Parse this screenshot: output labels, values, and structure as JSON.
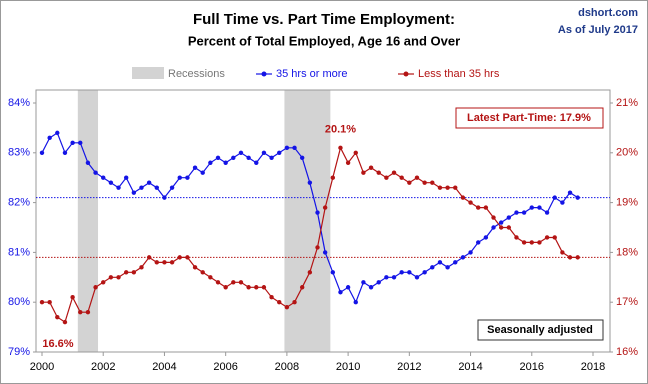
{
  "chart_data": {
    "type": "line",
    "title": "Full Time vs. Part Time Employment:",
    "subtitle": "Percent of Total Employed, Age 16 and Over",
    "source": "dshort.com",
    "date_note": "As of July 2017",
    "latest_label": "Latest Part-Time: 17.9%",
    "adjustment_note": "Seasonally adjusted",
    "annotations": [
      "20.1%",
      "16.6%"
    ],
    "recession_name": "Recessions",
    "recession_color": "#d3d3d3",
    "recessions": [
      [
        2001.17,
        2001.83
      ],
      [
        2007.92,
        2009.42
      ]
    ],
    "x": [
      2000,
      2000.25,
      2000.5,
      2000.75,
      2001,
      2001.25,
      2001.5,
      2001.75,
      2002,
      2002.25,
      2002.5,
      2002.75,
      2003,
      2003.25,
      2003.5,
      2003.75,
      2004,
      2004.25,
      2004.5,
      2004.75,
      2005,
      2005.25,
      2005.5,
      2005.75,
      2006,
      2006.25,
      2006.5,
      2006.75,
      2007,
      2007.25,
      2007.5,
      2007.75,
      2008,
      2008.25,
      2008.5,
      2008.75,
      2009,
      2009.25,
      2009.5,
      2009.75,
      2010,
      2010.25,
      2010.5,
      2010.75,
      2011,
      2011.25,
      2011.5,
      2011.75,
      2012,
      2012.25,
      2012.5,
      2012.75,
      2013,
      2013.25,
      2013.5,
      2013.75,
      2014,
      2014.25,
      2014.5,
      2014.75,
      2015,
      2015.25,
      2015.5,
      2015.75,
      2016,
      2016.25,
      2016.5,
      2016.75,
      2017,
      2017.25,
      2017.5
    ],
    "series": [
      {
        "name": "35 hrs or more",
        "color": "#1414e6",
        "axis": "y",
        "values": [
          83.0,
          83.3,
          83.4,
          83.0,
          83.2,
          83.2,
          82.8,
          82.6,
          82.5,
          82.4,
          82.3,
          82.5,
          82.2,
          82.3,
          82.4,
          82.3,
          82.1,
          82.3,
          82.5,
          82.5,
          82.7,
          82.6,
          82.8,
          82.9,
          82.8,
          82.9,
          83.0,
          82.9,
          82.8,
          83.0,
          82.9,
          83.0,
          83.1,
          83.1,
          82.9,
          82.4,
          81.8,
          81.0,
          80.6,
          80.2,
          80.3,
          80.0,
          80.4,
          80.3,
          80.4,
          80.5,
          80.5,
          80.6,
          80.6,
          80.5,
          80.6,
          80.7,
          80.8,
          80.7,
          80.8,
          80.9,
          81.0,
          81.2,
          81.3,
          81.5,
          81.6,
          81.7,
          81.8,
          81.8,
          81.9,
          81.9,
          81.8,
          82.1,
          82.0,
          82.2,
          82.1
        ]
      },
      {
        "name": "Less than 35 hrs",
        "color": "#b41414",
        "axis": "y2",
        "values": [
          17.0,
          17.0,
          16.7,
          16.6,
          17.1,
          16.8,
          16.8,
          17.3,
          17.4,
          17.5,
          17.5,
          17.6,
          17.6,
          17.7,
          17.9,
          17.8,
          17.8,
          17.8,
          17.9,
          17.9,
          17.7,
          17.6,
          17.5,
          17.4,
          17.3,
          17.4,
          17.4,
          17.3,
          17.3,
          17.3,
          17.1,
          17.0,
          16.9,
          17.0,
          17.3,
          17.6,
          18.1,
          18.9,
          19.5,
          20.1,
          19.8,
          20.0,
          19.6,
          19.7,
          19.6,
          19.5,
          19.6,
          19.5,
          19.4,
          19.5,
          19.4,
          19.4,
          19.3,
          19.3,
          19.3,
          19.1,
          19.0,
          18.9,
          18.9,
          18.7,
          18.5,
          18.5,
          18.3,
          18.2,
          18.2,
          18.2,
          18.3,
          18.3,
          18.0,
          17.9,
          17.9
        ]
      }
    ],
    "xlim": [
      2000,
      2018
    ],
    "xticks": [
      2000,
      2002,
      2004,
      2006,
      2008,
      2010,
      2012,
      2014,
      2016,
      2018
    ],
    "ylim": [
      79,
      84
    ],
    "yticks": [
      {
        "value": 79,
        "label": "79%"
      },
      {
        "value": 80,
        "label": "80%"
      },
      {
        "value": 81,
        "label": "81%"
      },
      {
        "value": 82,
        "label": "82%"
      },
      {
        "value": 83,
        "label": "83%"
      },
      {
        "value": 84,
        "label": "84%"
      }
    ],
    "y2lim": [
      16,
      21
    ],
    "y2ticks": [
      {
        "value": 16,
        "label": "16%"
      },
      {
        "value": 17,
        "label": "17%"
      },
      {
        "value": 18,
        "label": "18%"
      },
      {
        "value": 19,
        "label": "19%"
      },
      {
        "value": 20,
        "label": "20%"
      },
      {
        "value": 21,
        "label": "21%"
      }
    ]
  }
}
